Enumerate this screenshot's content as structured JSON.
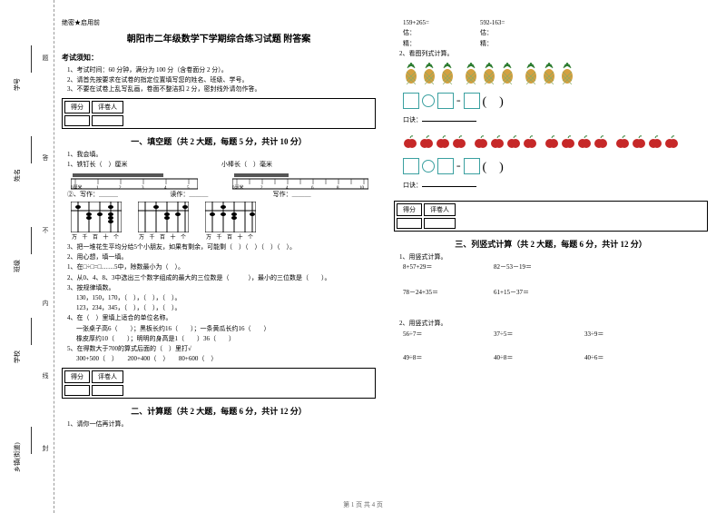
{
  "binding": {
    "labels": [
      "乡镇(街道)",
      "学校",
      "班级",
      "姓名",
      "学号"
    ],
    "marks": [
      "封",
      "线",
      "内",
      "不",
      "答",
      "题"
    ]
  },
  "header_mark": "绝密★启用前",
  "title": "朝阳市二年级数学下学期综合练习试题 附答案",
  "exam_notice_head": "考试须知：",
  "exam_notice": [
    "1、考试时间：60 分钟，满分为 100 分（含卷面分 2 分）。",
    "2、请首先按要求在试卷的指定位置填写您的姓名、班级、学号。",
    "3、不要在试卷上乱写乱画，卷面不整洁扣 2 分，密封线外请勿作答。"
  ],
  "score_head": [
    "得分",
    "评卷人"
  ],
  "sections": {
    "s1": "一、填空题（共 2 大题，每题 5 分，共计 10 分）",
    "s2": "二、计算题（共 2 大题，每题 6 分，共计 12 分）",
    "s3": "三、列竖式计算（共 2 大题，每题 6 分，共计 12 分）"
  },
  "q1": {
    "stem": "1、我会填。",
    "r1a": "1、铁钉长（　）厘米",
    "r1b": "小棒长（　）毫米",
    "ruler1_ticks": [
      "0厘米",
      "1",
      "2",
      "3",
      "4",
      "5"
    ],
    "ruler2_ticks": [
      "0毫米",
      "1",
      "2",
      "3",
      "4",
      "5",
      "6",
      "7",
      "8",
      "9",
      "10"
    ],
    "r2a": "②、写作：＿＿＿",
    "r2b": "读作：＿＿＿",
    "r2c": "写作：＿＿＿",
    "abacus_labels": "万 千 百 十 个",
    "r3": "3、把一堆花生平均分给5个小朋友，如果有剩余，可能剩（　）（　）（　）（　）。"
  },
  "q2": {
    "stem": "2、用心想，填一填。",
    "l1": "1、在□÷□=□……5中，除数最小为（　）。",
    "l2": "2、从0、4、8、3中选出三个数字组成的最大的三位数是（　　　），最小的三位数是（　　）。",
    "l3h": "3、按规律填数。",
    "l3a": "130，150，170，（　），（　），（　）。",
    "l3b": "123，234，345，（　），（　），（　）。",
    "l4h": "4、在（　）里填上适合的单位名称。",
    "l4a": "一张桌子高6（　　）；黑板长约16（　　）；一条黄瓜长约16（　　）",
    "l4b": "橡皮厚约10（　　）；明明的身高是1（　　）36（　　）",
    "l5h": "5、在得数大于700的算式后面的（　）里打√",
    "l5a": "300+500（　）　　200+400（　）　　80+600（　）"
  },
  "calc1": {
    "stem": "1、请你一估再计算。",
    "rows": [
      [
        "159+265=",
        "592-163="
      ],
      [
        "估：",
        "估："
      ],
      [
        "精：",
        "精："
      ]
    ]
  },
  "calc2": {
    "stem": "2、看图列式计算。",
    "kj": "口诀：",
    "pineapple_groups": [
      3,
      3,
      3
    ],
    "apple_groups": [
      4,
      4,
      4,
      4
    ]
  },
  "vcalc1": {
    "stem": "1、用竖式计算。",
    "items": [
      [
        "8+57+29＝",
        "82－53－19＝"
      ],
      [
        "78－24+35＝",
        "61+15－37＝"
      ]
    ]
  },
  "vcalc2": {
    "stem": "2、用竖式计算。",
    "items": [
      [
        "56÷7＝",
        "37÷5＝",
        "33÷9＝"
      ],
      [
        "49÷8＝",
        "40÷8＝",
        "40÷6＝"
      ]
    ]
  },
  "footer": "第 1 页 共 4 页",
  "colors": {
    "box": "#3aa0a0",
    "pineapple_body": "#d4a040",
    "pineapple_leaf": "#2e7d32",
    "apple": "#c62828",
    "apple_leaf": "#2e7d32"
  }
}
